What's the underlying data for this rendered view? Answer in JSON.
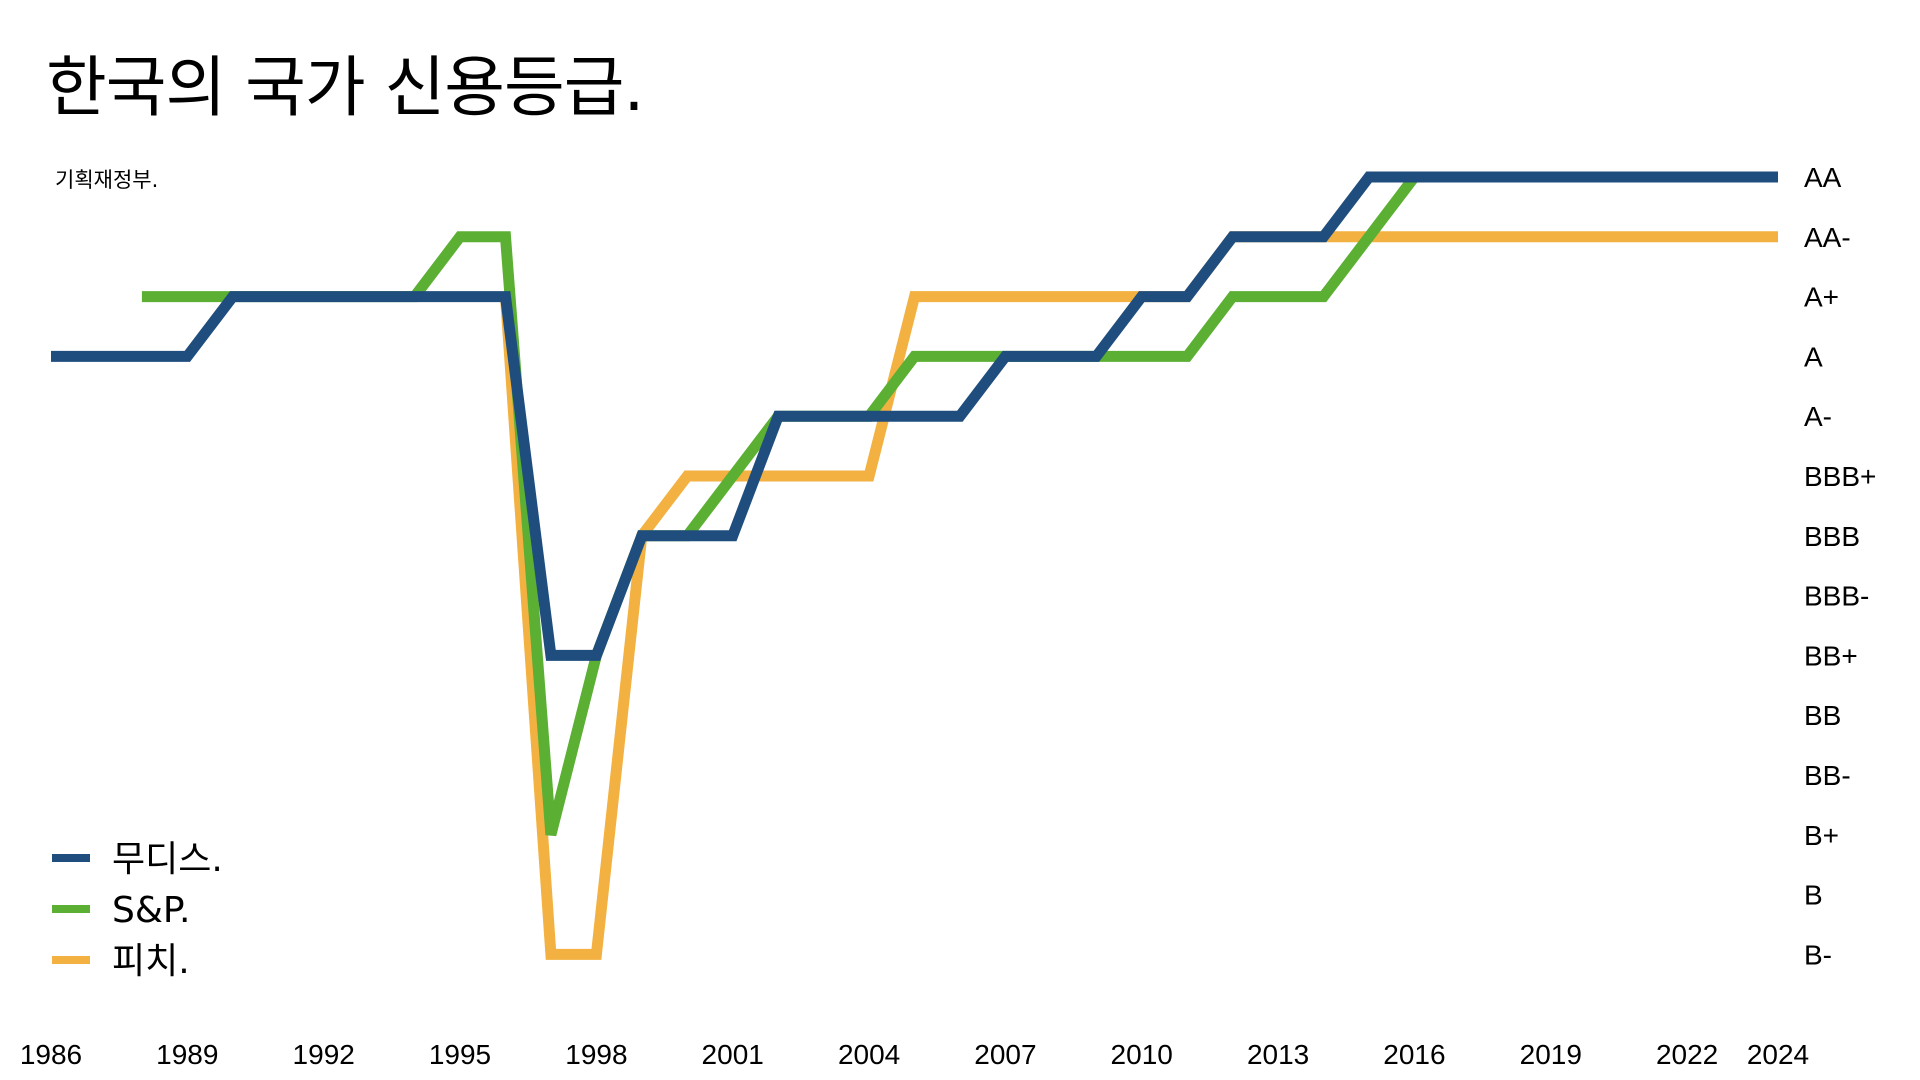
{
  "chart_data": {
    "type": "line",
    "title": "한국의 국가 신용등급.",
    "subtitle": "기획재정부.",
    "xlabel": "",
    "ylabel": "",
    "x_ticks": [
      "1986",
      "1989",
      "1992",
      "1995",
      "1998",
      "2001",
      "2004",
      "2007",
      "2010",
      "2013",
      "2016",
      "2019",
      "2022",
      "2024"
    ],
    "xlim": [
      1986,
      2024
    ],
    "y_categories": [
      "AA",
      "AA-",
      "A+",
      "A",
      "A-",
      "BBB+",
      "BBB",
      "BBB-",
      "BB+",
      "BB",
      "BB-",
      "B+",
      "B",
      "B-"
    ],
    "grid": false,
    "legend_position": "bottom-left",
    "series": [
      {
        "name": "피치.",
        "color": "#F2B141",
        "points": [
          [
            1996,
            "A+"
          ],
          [
            1997,
            "B-"
          ],
          [
            1998,
            "B-"
          ],
          [
            1999,
            "BBB"
          ],
          [
            2000,
            "BBB+"
          ],
          [
            2004,
            "BBB+"
          ],
          [
            2005,
            "A+"
          ],
          [
            2010,
            "A+"
          ],
          [
            2011,
            "A+"
          ],
          [
            2012,
            "AA-"
          ],
          [
            2024,
            "AA-"
          ]
        ]
      },
      {
        "name": "S&P.",
        "color": "#5BAF33",
        "points": [
          [
            1988,
            "A+"
          ],
          [
            1994,
            "A+"
          ],
          [
            1995,
            "AA-"
          ],
          [
            1996,
            "AA-"
          ],
          [
            1997,
            "B+"
          ],
          [
            1998,
            "BB+"
          ],
          [
            1999,
            "BBB"
          ],
          [
            2000,
            "BBB"
          ],
          [
            2002,
            "A-"
          ],
          [
            2004,
            "A-"
          ],
          [
            2005,
            "A"
          ],
          [
            2011,
            "A"
          ],
          [
            2012,
            "A+"
          ],
          [
            2014,
            "A+"
          ],
          [
            2016,
            "AA"
          ],
          [
            2024,
            "AA"
          ]
        ]
      },
      {
        "name": "무디스.",
        "color": "#1F4E7E",
        "points": [
          [
            1986,
            "A"
          ],
          [
            1989,
            "A"
          ],
          [
            1990,
            "A+"
          ],
          [
            1996,
            "A+"
          ],
          [
            1997,
            "BB+"
          ],
          [
            1998,
            "BB+"
          ],
          [
            1999,
            "BBB"
          ],
          [
            2001,
            "BBB"
          ],
          [
            2002,
            "A-"
          ],
          [
            2006,
            "A-"
          ],
          [
            2007,
            "A"
          ],
          [
            2009,
            "A"
          ],
          [
            2010,
            "A+"
          ],
          [
            2011,
            "A+"
          ],
          [
            2012,
            "AA-"
          ],
          [
            2014,
            "AA-"
          ],
          [
            2015,
            "AA"
          ],
          [
            2024,
            "AA"
          ]
        ]
      }
    ],
    "legend": [
      "무디스.",
      "S&P.",
      "피치."
    ]
  }
}
